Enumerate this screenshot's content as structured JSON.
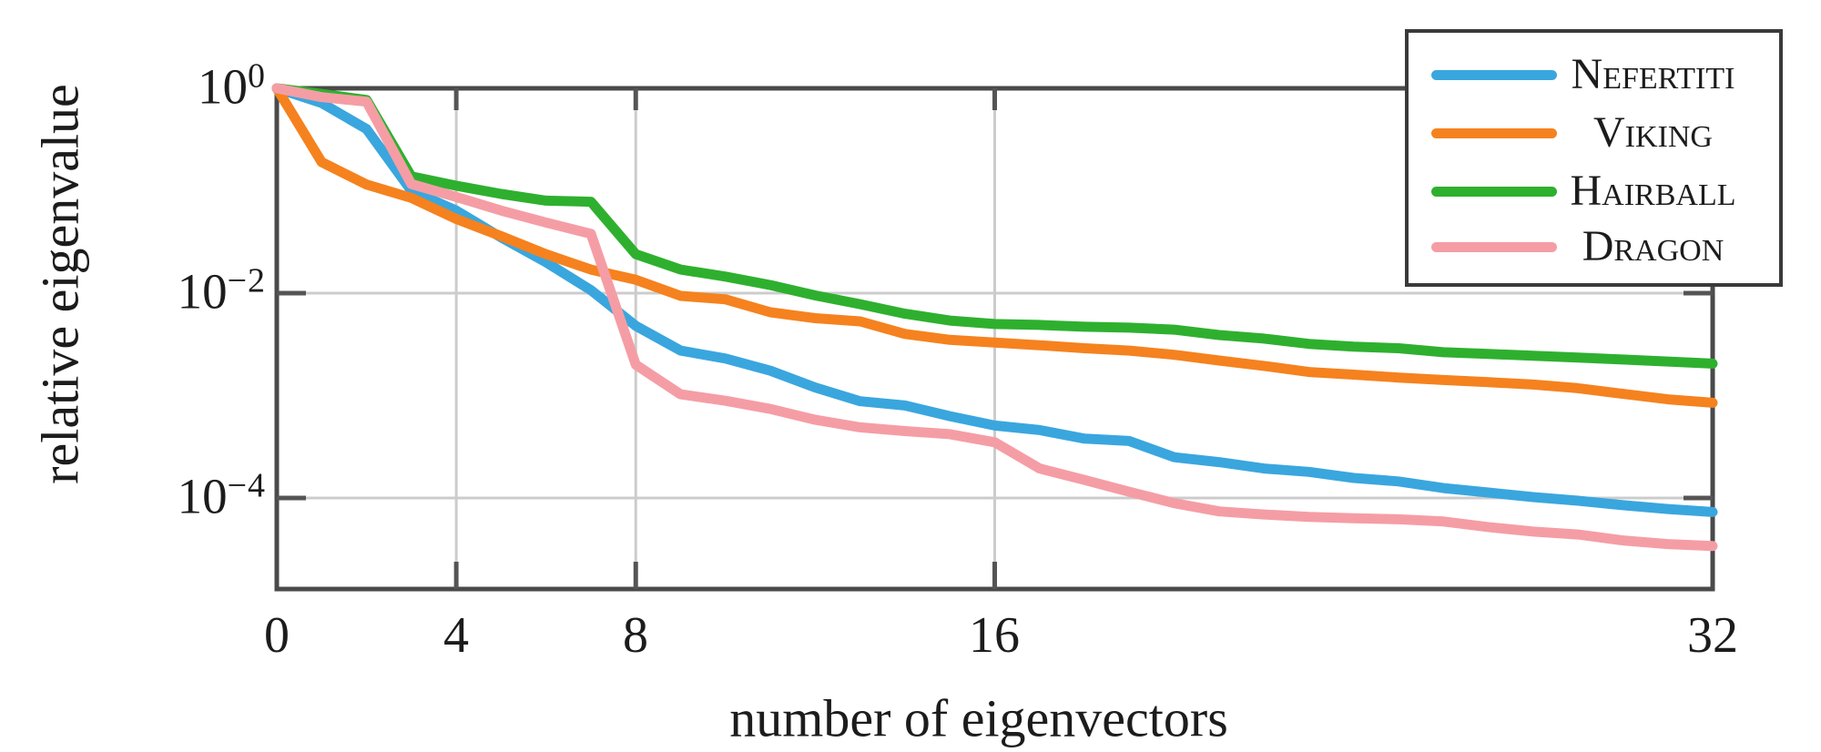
{
  "figure": {
    "background": "#ffffff",
    "frame_color": "#4a4a4a",
    "grid_color": "#cccccc",
    "tick_color": "#555555",
    "text_color": "#1c1c1c"
  },
  "chart_data": {
    "type": "line",
    "title": "",
    "xlabel": "number of eigenvectors",
    "ylabel": "relative eigenvalue",
    "x_scale": "linear",
    "y_scale": "log",
    "xlim": [
      0,
      32
    ],
    "ylim": [
      1.3e-05,
      1.0
    ],
    "grid": "on",
    "grid_x_values": [
      4,
      8,
      16
    ],
    "grid_y_values": [
      0.01,
      0.0001
    ],
    "legend_position": "top-right",
    "xtick_values": [
      0,
      4,
      8,
      16,
      32
    ],
    "xtick_labels": [
      "0",
      "4",
      "8",
      "16",
      "32"
    ],
    "ytick_values": [
      1,
      0.01,
      0.0001
    ],
    "ytick_labels": [
      {
        "base": "10",
        "exp": "0"
      },
      {
        "base": "10",
        "exp": "−2"
      },
      {
        "base": "10",
        "exp": "−4"
      }
    ],
    "x": [
      0,
      1,
      2,
      3,
      4,
      5,
      6,
      7,
      8,
      9,
      10,
      11,
      12,
      13,
      14,
      15,
      16,
      17,
      18,
      19,
      20,
      21,
      22,
      23,
      24,
      25,
      26,
      27,
      28,
      29,
      30,
      31,
      32
    ],
    "series": [
      {
        "label": "Nefertiti",
        "color": "#3AA6DE",
        "values": [
          1.0,
          0.72,
          0.4,
          0.1,
          0.064,
          0.035,
          0.02,
          0.0107,
          0.0048,
          0.00275,
          0.0023,
          0.00175,
          0.0012,
          0.00088,
          0.0008,
          0.00063,
          0.00051,
          0.00046,
          0.00038,
          0.00036,
          0.00025,
          0.000224,
          0.000194,
          0.00018,
          0.000157,
          0.000145,
          0.000125,
          0.000113,
          0.000102,
          9.4e-05,
          8.5e-05,
          7.8e-05,
          7.3e-05
        ]
      },
      {
        "label": "Viking",
        "color": "#F5821E",
        "values": [
          1.0,
          0.19,
          0.115,
          0.085,
          0.053,
          0.036,
          0.024,
          0.017,
          0.0135,
          0.0094,
          0.0087,
          0.0065,
          0.0057,
          0.0053,
          0.004,
          0.0035,
          0.0033,
          0.0031,
          0.0029,
          0.00275,
          0.0025,
          0.0022,
          0.00195,
          0.0017,
          0.0016,
          0.0015,
          0.00142,
          0.00135,
          0.00128,
          0.00118,
          0.00104,
          0.00092,
          0.00085
        ]
      },
      {
        "label": "Hairball",
        "color": "#2EB02E",
        "values": [
          1.0,
          0.88,
          0.77,
          0.138,
          0.112,
          0.093,
          0.08,
          0.078,
          0.024,
          0.017,
          0.0145,
          0.012,
          0.0095,
          0.0078,
          0.0063,
          0.0054,
          0.005,
          0.0049,
          0.0047,
          0.0046,
          0.0044,
          0.0039,
          0.0036,
          0.0032,
          0.003,
          0.0029,
          0.00265,
          0.00255,
          0.00245,
          0.00235,
          0.00225,
          0.00215,
          0.00205
        ]
      },
      {
        "label": "Dragon",
        "color": "#F59DA5",
        "values": [
          1.0,
          0.82,
          0.74,
          0.116,
          0.087,
          0.064,
          0.049,
          0.038,
          0.002,
          0.00103,
          0.00089,
          0.00074,
          0.00058,
          0.00049,
          0.00045,
          0.00042,
          0.00035,
          0.000194,
          0.00015,
          0.000115,
          8.9e-05,
          7.4e-05,
          6.9e-05,
          6.55e-05,
          6.35e-05,
          6.2e-05,
          5.9e-05,
          5.2e-05,
          4.7e-05,
          4.4e-05,
          3.85e-05,
          3.55e-05,
          3.4e-05
        ]
      }
    ]
  }
}
